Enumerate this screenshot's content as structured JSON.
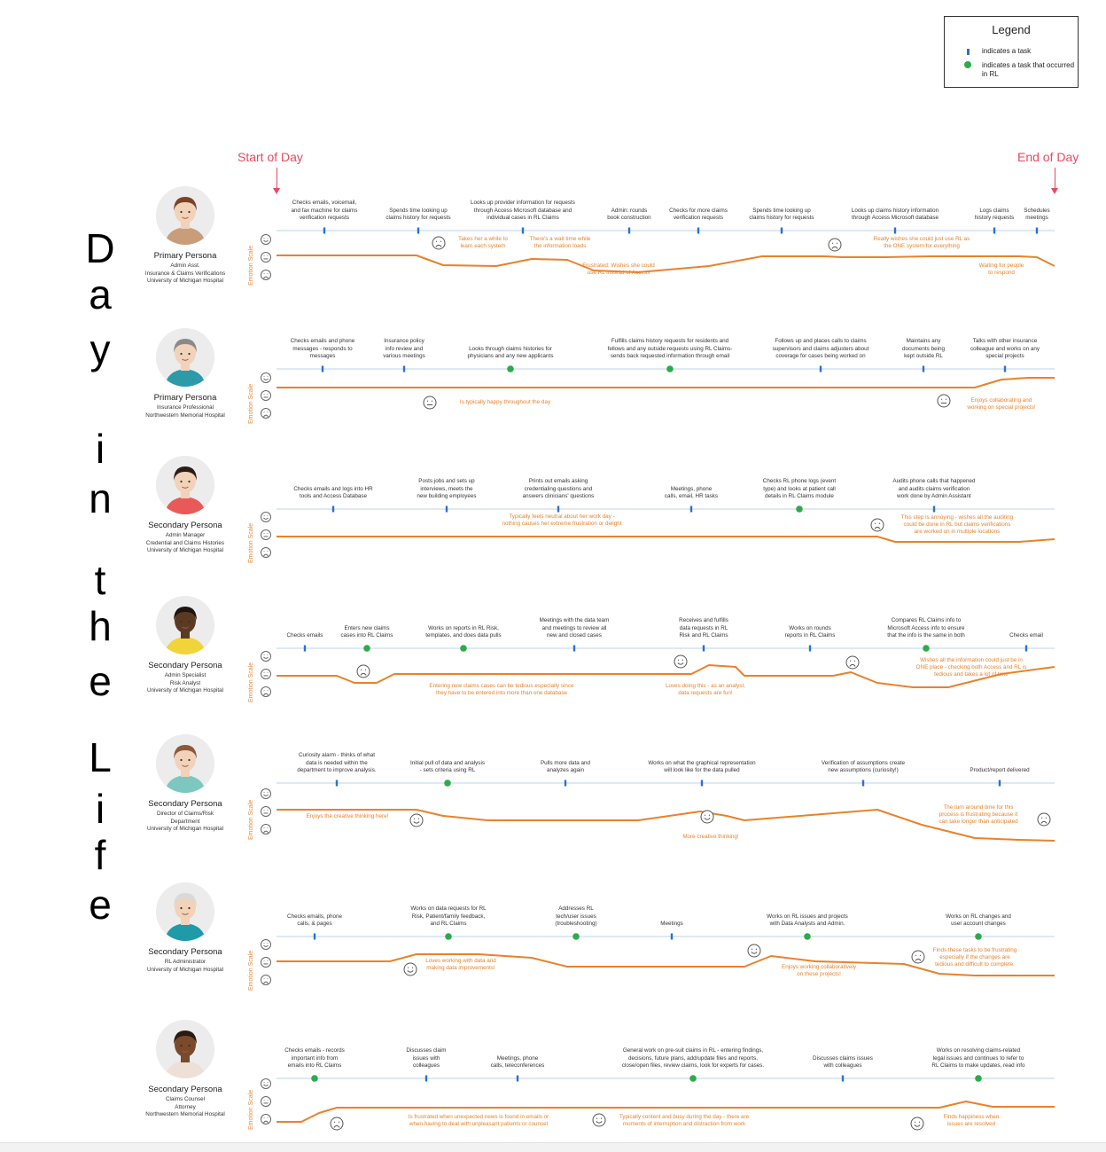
{
  "legend": {
    "title": "Legend",
    "task_text": "indicates a task",
    "rl_task_text": "indicates a task  that occurred in RL"
  },
  "side_title": [
    "D",
    "a",
    "y",
    "i",
    "n",
    "t",
    "h",
    "e",
    "L",
    "i",
    "f",
    "e"
  ],
  "timeline": {
    "start_label": "Start of Day",
    "end_label": "End of Day"
  },
  "emotion_scale_label": "Emotion Scale",
  "colors": {
    "accent": "#e8822a",
    "task_marker": "#2f6fd1",
    "rl_marker": "#2daa4a",
    "start_end": "#e84a5f",
    "axis": "#bcd3ee"
  },
  "personas": [
    {
      "role": "Primary Persona",
      "details": [
        "Admin Asst.",
        "Insurance & Claims Verifications",
        "University of Michigan Hospital"
      ],
      "skin": "#f2d2b8",
      "hair": "#7a4426",
      "shirt": "#c99d7a",
      "tasks": [
        {
          "text": [
            "Checks emails, voicemail,",
            "and fax machine for claims",
            "verification requests"
          ],
          "rl": false
        },
        {
          "text": [
            "Spends time looking up",
            "claims history for requests"
          ],
          "rl": false
        },
        {
          "text": [
            "Looks up provider information for requests",
            "through Access Microsoft database and",
            "individual cases in RL Claims"
          ],
          "rl": false
        },
        {
          "text": [
            "Admin: rounds",
            "book construction"
          ],
          "rl": false
        },
        {
          "text": [
            "Checks for more claims",
            "verification requests"
          ],
          "rl": false
        },
        {
          "text": [
            "Spends time looking up",
            "claims history for requests"
          ],
          "rl": false
        },
        {
          "text": [
            "Looks up claims history information",
            "through Access Microsoft database"
          ],
          "rl": false
        },
        {
          "text": [
            "Logs claims",
            "history requests"
          ],
          "rl": false
        },
        {
          "text": [
            "Schedules",
            "meetings"
          ],
          "rl": false
        }
      ],
      "notes": [
        {
          "text": [
            "Takes her a while to",
            "learn each system"
          ]
        },
        {
          "text": [
            "There's a wait time while",
            "the information loads"
          ]
        },
        {
          "text": [
            "Frustrated: Wishes she could",
            "use RL instead of Access"
          ]
        },
        {
          "text": [
            "Really wishes she could just use RL as",
            "the ONE system for everything"
          ]
        },
        {
          "text": [
            "Waiting for people",
            "to respond"
          ]
        }
      ]
    },
    {
      "role": "Primary Persona",
      "details": [
        "Insurance Professional",
        "Northwestern Memorial Hospital"
      ],
      "skin": "#f2d2b8",
      "hair": "#8a8a8a",
      "shirt": "#2c9aa8",
      "tasks": [
        {
          "text": [
            "Checks emails and phone",
            "messages - responds to",
            "messages"
          ],
          "rl": false
        },
        {
          "text": [
            "Insurance policy",
            "info review and",
            "various meetings"
          ],
          "rl": false
        },
        {
          "text": [
            "Looks through claims histories for",
            "physicians and any new applicants"
          ],
          "rl": true
        },
        {
          "text": [
            "Fulfills claims history requests for residents and",
            "fellows and any outside requests using RL Claims-",
            "sends back requested information through email"
          ],
          "rl": true
        },
        {
          "text": [
            "Follows up and places calls to claims",
            "supervisors and claims adjusters about",
            "coverage  for cases being worked on"
          ],
          "rl": false
        },
        {
          "text": [
            "Maintains any",
            "documents being",
            "kept outside RL"
          ],
          "rl": false
        },
        {
          "text": [
            "Talks with other insurance",
            "colleague and works on any",
            "special projects"
          ],
          "rl": false
        }
      ],
      "notes": [
        {
          "text": [
            "Is typically happy throughout the day"
          ]
        },
        {
          "text": [
            "Enjoys collaborating and",
            "working on special projects!"
          ]
        }
      ]
    },
    {
      "role": "Secondary Persona",
      "details": [
        "Admin Manager",
        "Credential and Claims Histories",
        "University of Michigan Hospital"
      ],
      "skin": "#f2d2b8",
      "hair": "#2a1d18",
      "shirt": "#e85a57",
      "tasks": [
        {
          "text": [
            "Checks emails and logs into HR",
            "tools and Access Database"
          ],
          "rl": false
        },
        {
          "text": [
            "Posts jobs and sets up",
            "interviews, meets the",
            "new building employees"
          ],
          "rl": false
        },
        {
          "text": [
            "Prints out emails asking",
            "credentialing questions and",
            "answers clinicians' questions"
          ],
          "rl": false
        },
        {
          "text": [
            "Meetings, phone",
            "calls, email, HR tasks"
          ],
          "rl": false
        },
        {
          "text": [
            "Checks RL phone logs  (event",
            "type) and looks at patient call",
            "details in RL Claims module"
          ],
          "rl": true
        },
        {
          "text": [
            "Audits phone calls that happened",
            "and audits claims verification",
            "work done by Admin Assistant"
          ],
          "rl": false
        }
      ],
      "notes": [
        {
          "text": [
            "Typically feels neutral about her work day -",
            "nothing causes her extreme frustration or delight"
          ]
        },
        {
          "text": [
            "This step is annoying - wishes all the auditing",
            "could be done in RL but claims verifications",
            "are worked on in multiple locations"
          ]
        }
      ]
    },
    {
      "role": "Secondary Persona",
      "details": [
        "Admin Specialist",
        "Risk Analyst",
        "University of Michigan Hospital"
      ],
      "skin": "#5b3a24",
      "hair": "#1e1410",
      "shirt": "#f0d43a",
      "tasks": [
        {
          "text": [
            "Checks emails"
          ],
          "rl": false
        },
        {
          "text": [
            "Enters new claims",
            "cases into RL Claims"
          ],
          "rl": true
        },
        {
          "text": [
            "Works on reports in RL Risk,",
            "templates, and does data pulls"
          ],
          "rl": true
        },
        {
          "text": [
            "Meetings with the data team",
            "and meetings to review all",
            "new and closed cases"
          ],
          "rl": false
        },
        {
          "text": [
            "Receives and fulfills",
            "data requests in RL",
            "Risk  and RL Claims"
          ],
          "rl": false
        },
        {
          "text": [
            "Works on rounds",
            "reports in RL Claims"
          ],
          "rl": false
        },
        {
          "text": [
            "Compares RL Claims info to",
            "Microsoft Access info to ensure",
            "that the info is the same in both"
          ],
          "rl": true
        },
        {
          "text": [
            "Checks email"
          ],
          "rl": false
        }
      ],
      "notes": [
        {
          "text": [
            "Entering new claims cases can be tedious especially since",
            "they have to be entered into more than one database"
          ]
        },
        {
          "text": [
            "Loves doing this - as an analyst,",
            "data requests are fun!"
          ]
        },
        {
          "text": [
            "Wishes all the information could just be in",
            "ONE place - checking both Access and RL is",
            "tedious and takes a lot of time"
          ]
        }
      ]
    },
    {
      "role": "Secondary Persona",
      "details": [
        "Director of Claims/Risk",
        "Department",
        "University of Michigan Hospital"
      ],
      "skin": "#f2d2b8",
      "hair": "#8b5a3c",
      "shirt": "#7cc7c0",
      "tasks": [
        {
          "text": [
            "Curiosity alarm - thinks of what",
            "data is needed within the",
            "department to improve analysis."
          ],
          "rl": false
        },
        {
          "text": [
            "Initial pull of data and analysis",
            "- sets criteria using RL"
          ],
          "rl": true
        },
        {
          "text": [
            "Pulls more data and",
            "analyzes again"
          ],
          "rl": false
        },
        {
          "text": [
            "Works on what the graphical representation",
            "will look like for the data pulled"
          ],
          "rl": false
        },
        {
          "text": [
            "Verification of assumptions create",
            "new assumptions  (curiosity!)"
          ],
          "rl": false
        },
        {
          "text": [
            "Product/report delivered"
          ],
          "rl": false
        }
      ],
      "notes": [
        {
          "text": [
            "Enjoys the creative thinking here!"
          ]
        },
        {
          "text": [
            "More creative thinking!"
          ]
        },
        {
          "text": [
            "The turn around time for this",
            "process is frustrating because it",
            "can take longer than anticipated"
          ]
        }
      ]
    },
    {
      "role": "Secondary Persona",
      "details": [
        "RL Administrator",
        "University of Michigan Hospital"
      ],
      "skin": "#f2d2b8",
      "hair": "#d9d9d9",
      "shirt": "#1e9aa8",
      "tasks": [
        {
          "text": [
            "Checks emails, phone",
            "calls,  & pages"
          ],
          "rl": false
        },
        {
          "text": [
            "Works on data requests for RL",
            "Risk, Patient/family feedback,",
            "and RL Claims"
          ],
          "rl": true
        },
        {
          "text": [
            "Addresses RL",
            "tech/user issues",
            "(troubleshooting)"
          ],
          "rl": true
        },
        {
          "text": [
            "Meetings"
          ],
          "rl": false
        },
        {
          "text": [
            "Works on RL issues and projects",
            "with Data Analysts and Admin."
          ],
          "rl": true
        },
        {
          "text": [
            "Works on RL changes and",
            "user account changes"
          ],
          "rl": true
        }
      ],
      "notes": [
        {
          "text": [
            "Loves working with data and",
            "making data improvements!"
          ]
        },
        {
          "text": [
            "Enjoys working collaboratively",
            "on these projects!"
          ]
        },
        {
          "text": [
            "Finds these tasks to be frustrating",
            "especially if the changes are",
            "tedious and difficult to complete."
          ]
        }
      ]
    },
    {
      "role": "Secondary Persona",
      "details": [
        "Claims Counsel",
        "Attorney",
        "Northwestern Memorial Hospital"
      ],
      "skin": "#7a4a2c",
      "hair": "#2a1a12",
      "shirt": "#ede0d6",
      "tasks": [
        {
          "text": [
            "Checks emails - records",
            "important info from",
            "emails into RL Claims"
          ],
          "rl": true
        },
        {
          "text": [
            "Discusses claim",
            "issues with",
            "colleagues"
          ],
          "rl": false
        },
        {
          "text": [
            "Meetings, phone",
            "calls, teleconferences"
          ],
          "rl": false
        },
        {
          "text": [
            "General work on pre-suit claims in RL - entering findings,",
            "decisions, future plans, add/update files and reports,",
            "close/open files, review claims, look for experts for cases."
          ],
          "rl": true
        },
        {
          "text": [
            "Discusses claims issues",
            "with colleagues"
          ],
          "rl": false
        },
        {
          "text": [
            "Works on resolving claims-related",
            "legal issues and continues to refer to",
            "RL Claims to make updates, read info"
          ],
          "rl": true
        }
      ],
      "notes": [
        {
          "text": [
            "Is frustrated when unexpected news is found in emails or",
            "when having to deal with unpleasant patients or counsel"
          ]
        },
        {
          "text": [
            "Typically content and busy during the day - there are",
            "moments of interruption and distraction from work"
          ]
        },
        {
          "text": [
            "Finds happiness when",
            "issues are resolved"
          ]
        }
      ]
    }
  ]
}
